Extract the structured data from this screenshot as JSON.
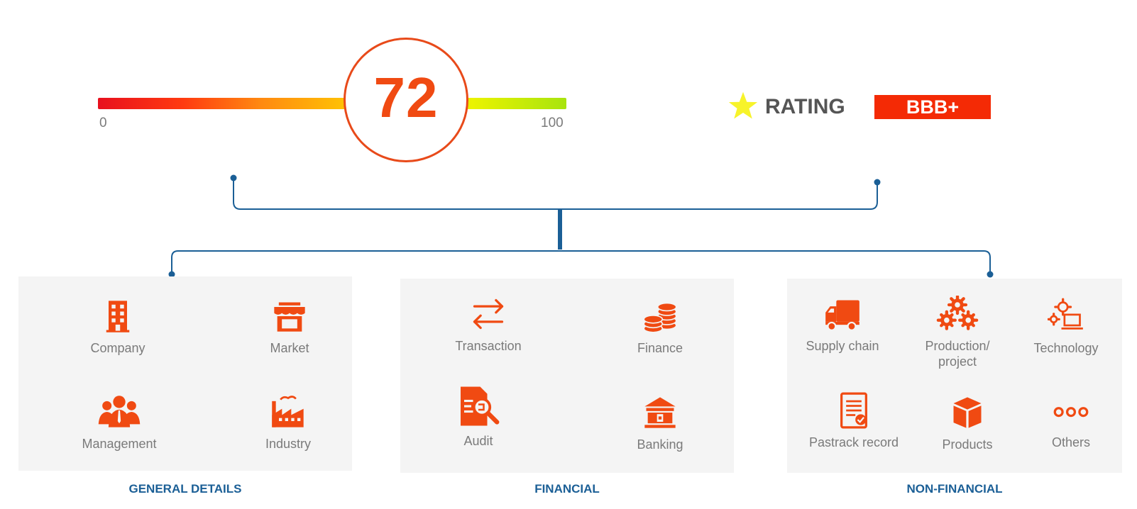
{
  "score": {
    "value": "72",
    "min_label": "0",
    "max_label": "100",
    "level": 0.72
  },
  "rating": {
    "icon": "star-icon",
    "label": "RATING",
    "grade": "BBB+"
  },
  "colors": {
    "accent": "#f04a12",
    "connector": "#1b5f96",
    "panel": "#f4f4f4",
    "star": "#f7f32a"
  },
  "sections": [
    {
      "title": "GENERAL DETAILS",
      "items": [
        {
          "label": "Company",
          "icon": "building-icon"
        },
        {
          "label": "Market",
          "icon": "storefront-icon"
        },
        {
          "label": "Management",
          "icon": "people-group-icon"
        },
        {
          "label": "Industry",
          "icon": "factory-icon"
        }
      ]
    },
    {
      "title": "FINANCIAL",
      "items": [
        {
          "label": "Transaction",
          "icon": "exchange-arrows-icon"
        },
        {
          "label": "Finance",
          "icon": "coins-icon"
        },
        {
          "label": "Audit",
          "icon": "document-search-icon"
        },
        {
          "label": "Banking",
          "icon": "bank-icon"
        }
      ]
    },
    {
      "title": "NON-FINANCIAL",
      "items": [
        {
          "label": "Supply chain",
          "icon": "truck-icon"
        },
        {
          "label": "Production/\nproject",
          "icon": "gears-icon"
        },
        {
          "label": "Technology",
          "icon": "gear-laptop-icon"
        },
        {
          "label": "Pastrack record",
          "icon": "checked-document-icon"
        },
        {
          "label": "Products",
          "icon": "box-icon"
        },
        {
          "label": "Others",
          "icon": "circles-icon"
        }
      ]
    }
  ]
}
